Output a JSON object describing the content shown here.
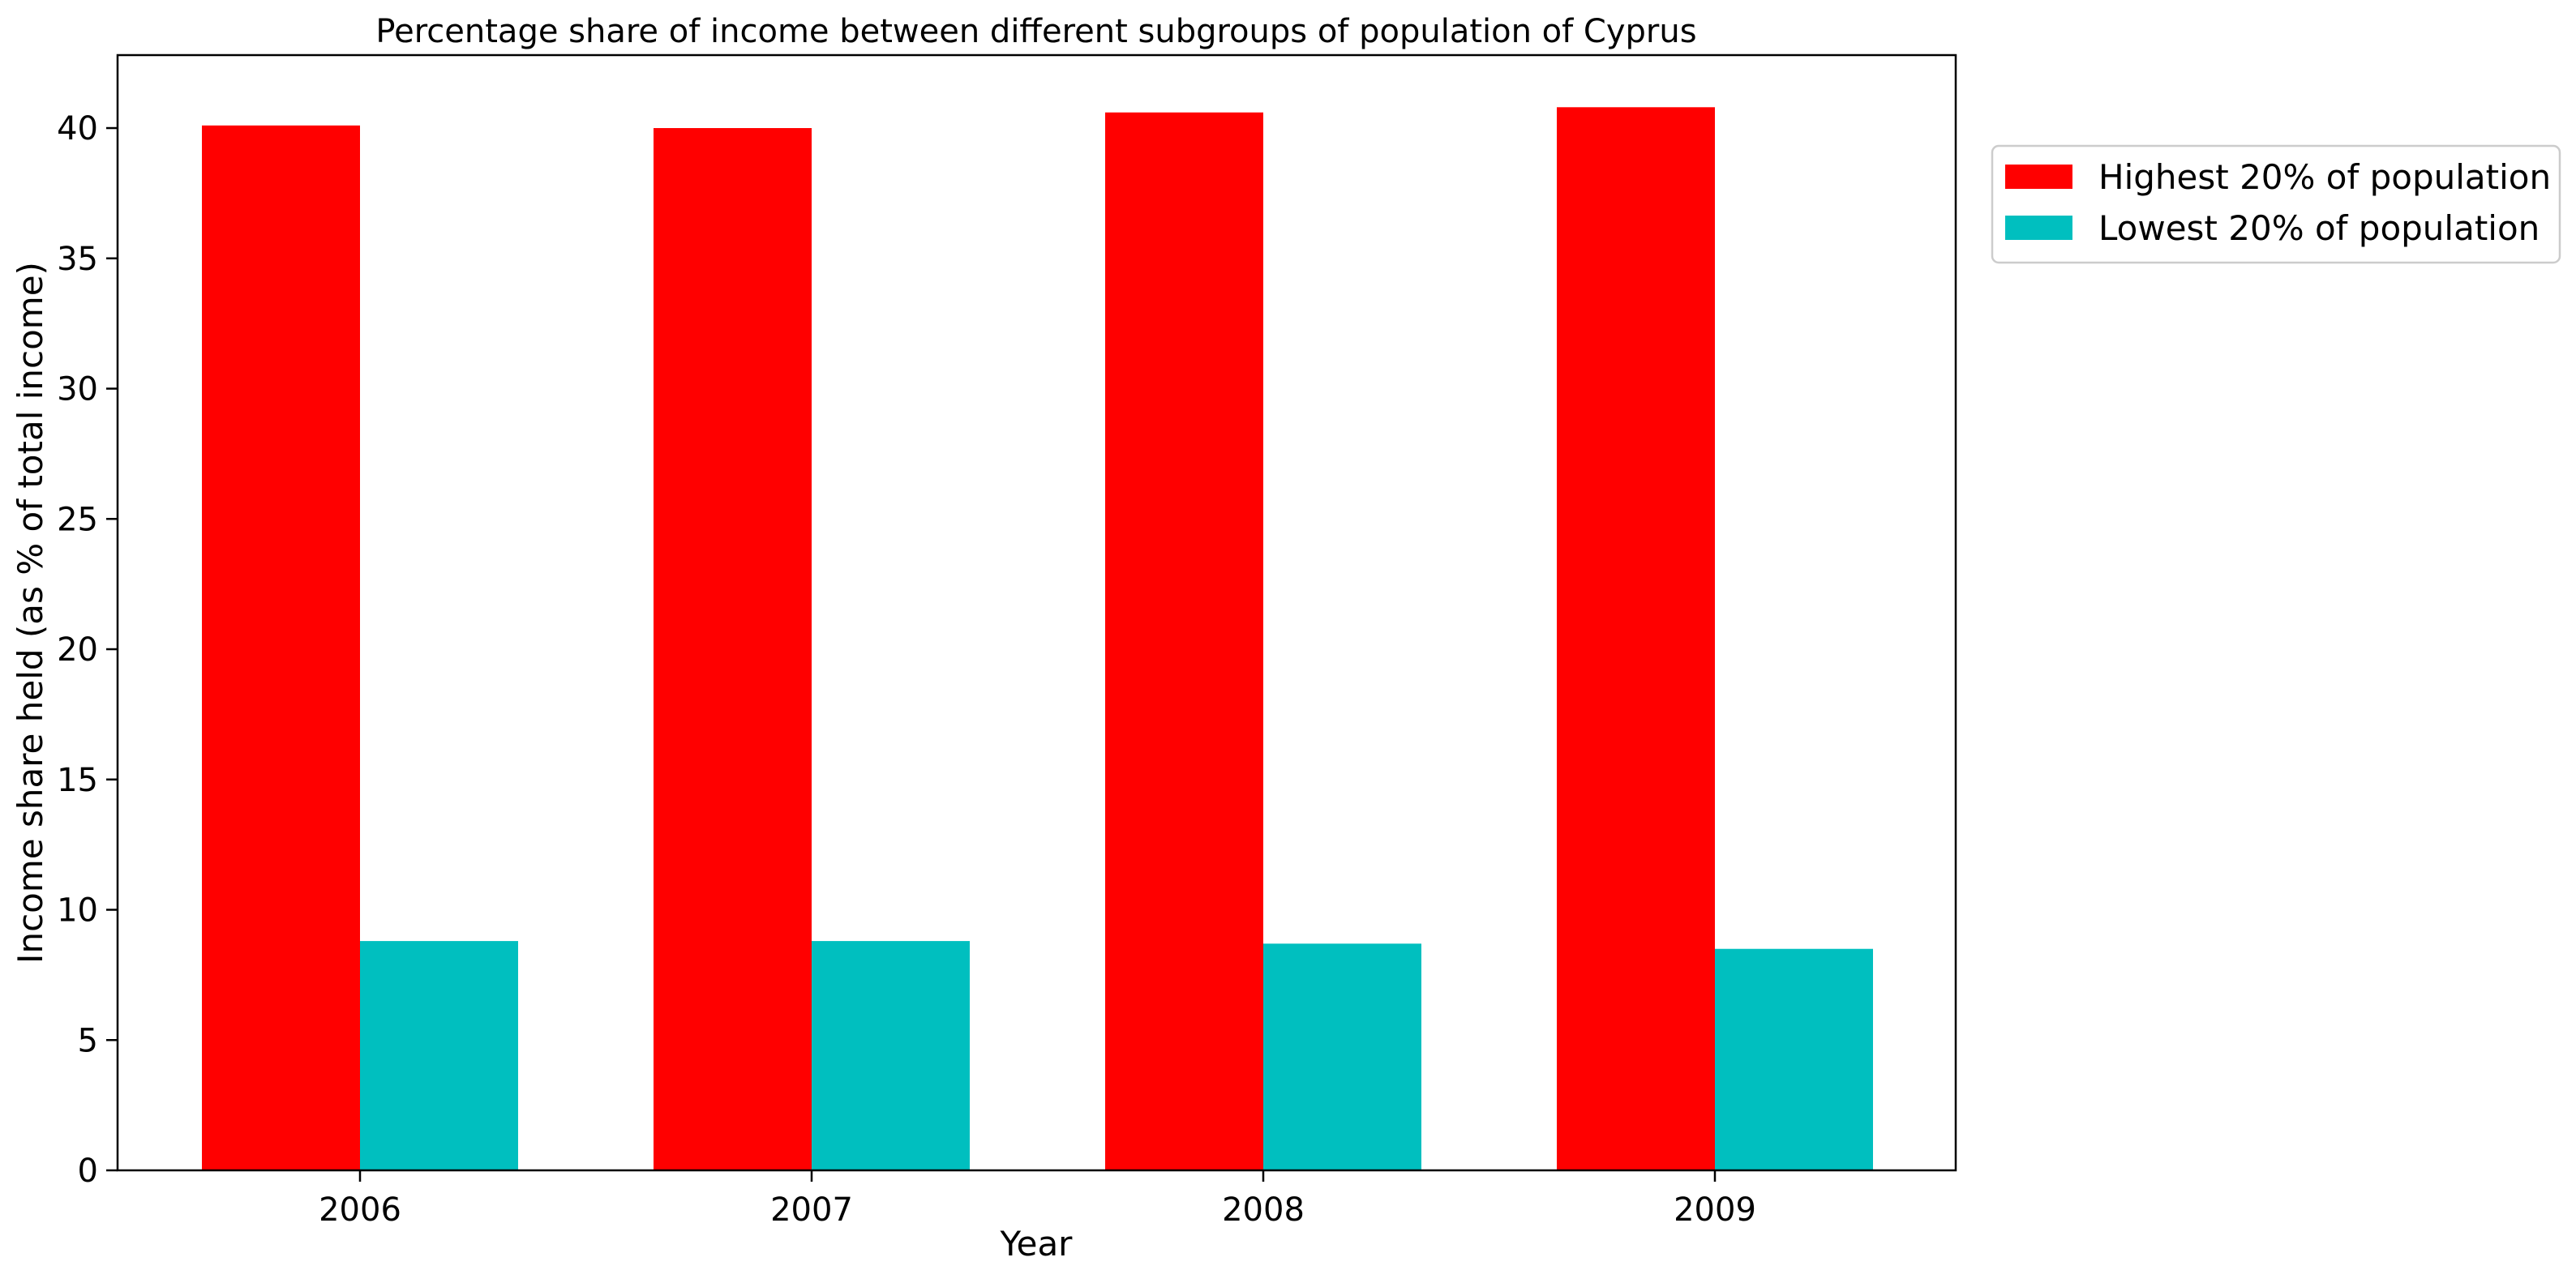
{
  "chart_data": {
    "type": "bar",
    "title": "Percentage share of income between different subgroups of population of Cyprus",
    "xlabel": "Year",
    "ylabel": "Income share held (as % of total income)",
    "categories": [
      "2006",
      "2007",
      "2008",
      "2009"
    ],
    "series": [
      {
        "name": "Highest 20% of population",
        "color": "#ff0000",
        "values": [
          40.1,
          40.0,
          40.6,
          40.8
        ]
      },
      {
        "name": "Lowest 20% of population",
        "color": "#00bfbf",
        "values": [
          8.8,
          8.8,
          8.7,
          8.5
        ]
      }
    ],
    "ylim": [
      0,
      42.8
    ],
    "yticks": [
      0,
      5,
      10,
      15,
      20,
      25,
      30,
      35,
      40
    ],
    "grid": false,
    "legend_position": "outside-top-right"
  }
}
